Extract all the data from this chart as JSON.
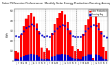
{
  "title": "Solar PV/Inverter Performance  Monthly Solar Energy Production Running Average",
  "title_fontsize": 2.8,
  "bar_color": "#ff0000",
  "avg_color": "#0000cc",
  "background_color": "#ffffff",
  "grid_color": "#aaaaaa",
  "ylabel": "kWh",
  "ylabel_fontsize": 2.5,
  "months": [
    "J",
    "F",
    "M",
    "A",
    "M",
    "J",
    "J",
    "A",
    "S",
    "O",
    "N",
    "D",
    "J",
    "F",
    "M",
    "A",
    "M",
    "J",
    "J",
    "A",
    "S",
    "O",
    "N",
    "D",
    "J",
    "F",
    "M",
    "A",
    "M",
    "J",
    "J",
    "A",
    "S",
    "O",
    "N",
    "D"
  ],
  "bar_values": [
    100,
    80,
    260,
    350,
    420,
    455,
    480,
    445,
    375,
    295,
    135,
    90,
    125,
    105,
    280,
    370,
    430,
    475,
    500,
    465,
    385,
    305,
    145,
    100,
    115,
    95,
    270,
    360,
    415,
    465,
    30,
    450,
    380,
    300,
    140,
    95
  ],
  "avg_values": [
    250,
    245,
    270,
    300,
    330,
    350,
    365,
    355,
    320,
    280,
    255,
    242,
    248,
    244,
    268,
    298,
    328,
    348,
    363,
    353,
    318,
    278,
    253,
    240,
    246,
    242,
    266,
    296,
    326,
    346,
    361,
    351,
    316,
    276,
    251,
    238
  ],
  "small_bar_values": [
    18,
    14,
    38,
    48,
    58,
    63,
    68,
    63,
    53,
    43,
    23,
    16,
    20,
    15,
    40,
    50,
    60,
    65,
    70,
    65,
    55,
    45,
    25,
    18,
    19,
    14,
    39,
    49,
    59,
    64,
    5,
    64,
    54,
    44,
    24,
    17
  ],
  "ylim": [
    0,
    520
  ],
  "legend_solar": "Solar Production",
  "legend_avg": "Running Avg",
  "tick_fontsize": 1.8,
  "legend_fontsize": 2.0
}
